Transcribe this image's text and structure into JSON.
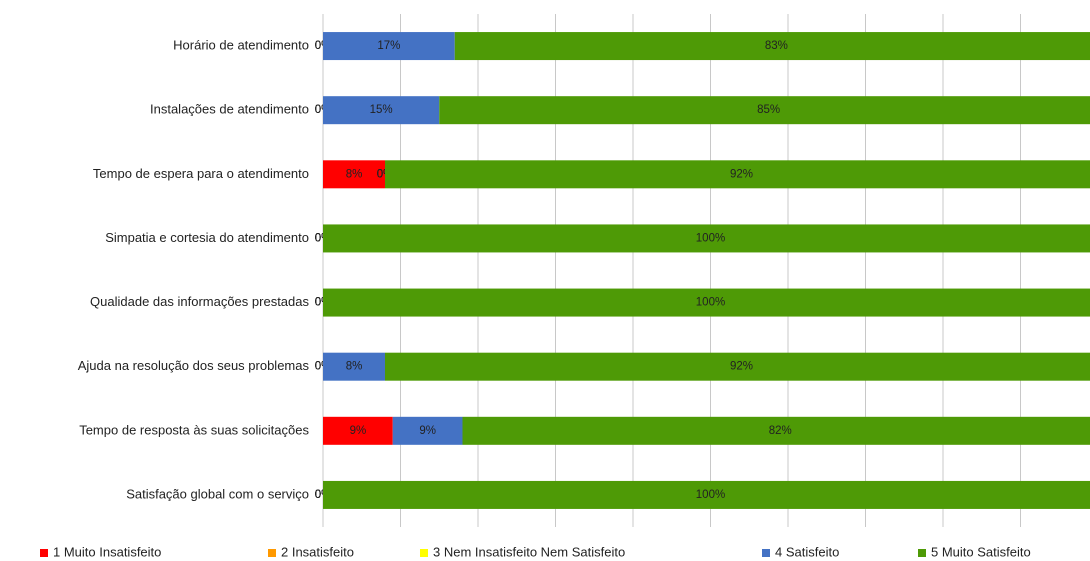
{
  "chart_data": {
    "type": "stacked-barh",
    "categories": [
      "Horário de atendimento",
      "Instalações de atendimento",
      "Tempo de espera para o atendimento",
      "Simpatia e cortesia do atendimento",
      "Qualidade das informações prestadas",
      "Ajuda na resolução dos seus problemas",
      "Tempo de resposta às suas solicitações",
      "Satisfação global com o serviço"
    ],
    "series": [
      {
        "name": "1 Muito Insatisfeito",
        "color": "#ff0000",
        "values": [
          0,
          0,
          8,
          0,
          0,
          0,
          9,
          0
        ],
        "value_labels": [
          "0%",
          "0%",
          "8%",
          "0%",
          "0%",
          "0%",
          "9%",
          "0%"
        ]
      },
      {
        "name": "2 Insatisfeito",
        "color": "#ff9900",
        "values": [
          0,
          0,
          0,
          0,
          0,
          0,
          null,
          0
        ],
        "value_labels": [
          "0%",
          "0%",
          "0%",
          "0%",
          "0%",
          "0%",
          null,
          "0%"
        ]
      },
      {
        "name": "3 Nem Insatisfeito Nem Satisfeito",
        "color": "#ffff00",
        "values": [
          0,
          0,
          0,
          0,
          0,
          0,
          null,
          0
        ],
        "value_labels": [
          "0%",
          "0%",
          "0%",
          "0%",
          "0%",
          "0%",
          null,
          "0%"
        ]
      },
      {
        "name": "4 Satisfeito",
        "color": "#4472c4",
        "values": [
          17,
          15,
          0,
          0,
          0,
          8,
          9,
          0
        ],
        "value_labels": [
          "17%",
          "15%",
          "0%",
          "0%",
          "0%",
          "8%",
          "9%",
          "0%"
        ]
      },
      {
        "name": "5 Muito Satisfeito",
        "color": "#4e9a06",
        "values": [
          83,
          85,
          92,
          100,
          100,
          92,
          82,
          100
        ],
        "value_labels": [
          "83%",
          "85%",
          "92%",
          "100%",
          "100%",
          "92%",
          "82%",
          "100%"
        ]
      }
    ],
    "xlim": [
      0,
      100
    ],
    "xticks": [
      0,
      10,
      20,
      30,
      40,
      50,
      60,
      70,
      80,
      90,
      100
    ],
    "grid": true,
    "legend": "bottom"
  }
}
